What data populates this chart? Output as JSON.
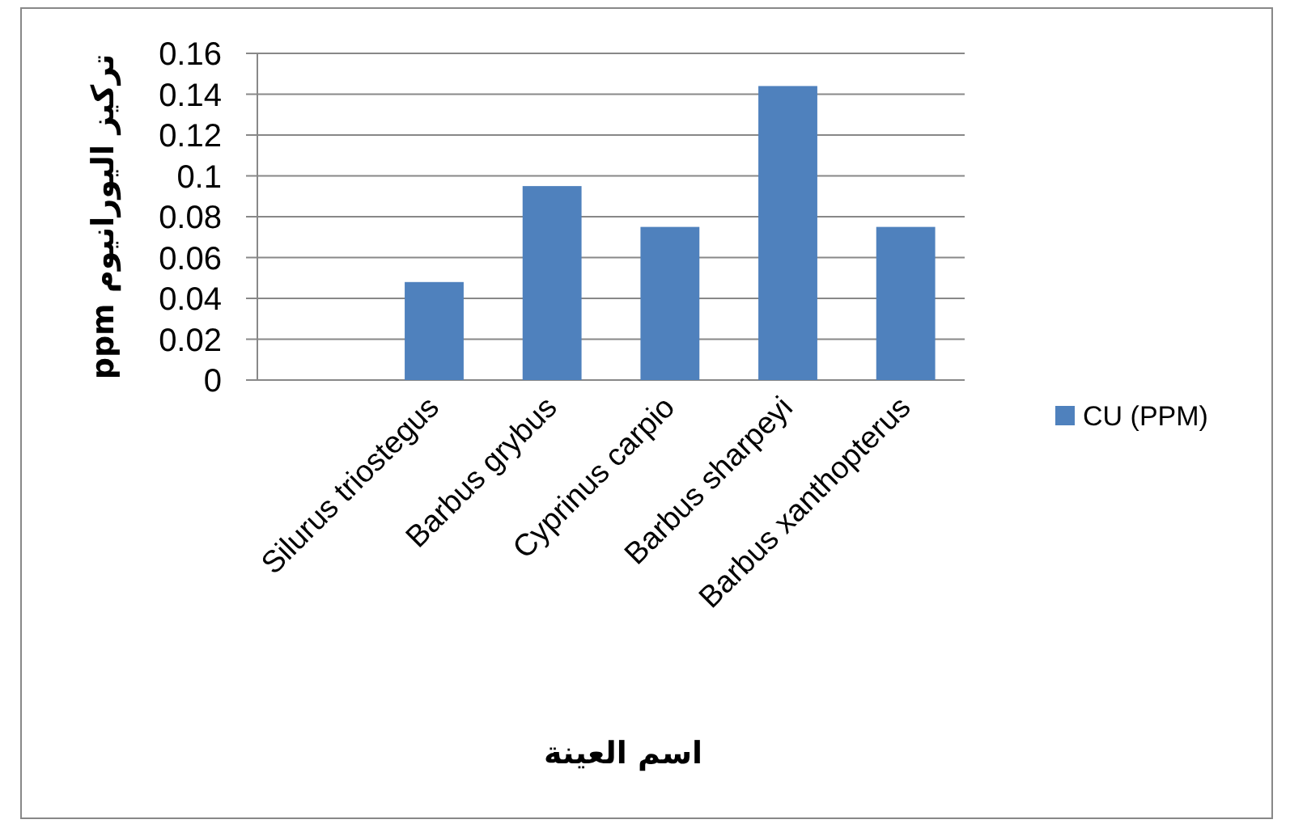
{
  "chart_data": {
    "type": "bar",
    "xlabel": "اسم العينة",
    "ylabel": "تركيز اليورانيوم ppm",
    "categories": [
      null,
      "Silurus triostegus",
      "Barbus grybus",
      "Cyprinus carpio",
      "Barbus sharpeyi",
      "Barbus xanthopterus"
    ],
    "series": [
      {
        "name": "CU (PPM)",
        "color": "#4f81bd",
        "values": [
          null,
          0.048,
          0.095,
          0.075,
          0.144,
          0.075
        ]
      }
    ],
    "ylim": [
      0,
      0.16
    ],
    "yticks": [
      0,
      0.02,
      0.04,
      0.06,
      0.08,
      0.1,
      0.12,
      0.14,
      0.16
    ],
    "grid": "y",
    "legend": "right"
  }
}
